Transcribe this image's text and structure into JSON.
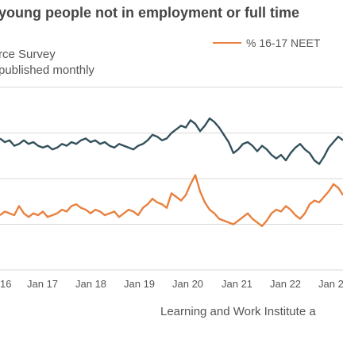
{
  "header": {
    "title": "young people not in employment or full time",
    "subtitle_line1": "rce Survey",
    "subtitle_line2": "published monthly"
  },
  "footer": {
    "source": "Learning and Work Institute a"
  },
  "colors": {
    "series_dark": "#33515c",
    "series_orange": "#e8813f",
    "gridline": "#d9d9d9"
  },
  "chart_data": {
    "type": "line",
    "title": "young people not in employment or full time",
    "xlabel": "",
    "ylabel": "",
    "x_ticks": [
      "16",
      "Jan 17",
      "Jan 18",
      "Jan 19",
      "Jan 20",
      "Jan 21",
      "Jan 22",
      "Jan 2"
    ],
    "x_range": [
      2016,
      2023.2
    ],
    "y_range": [
      0,
      100
    ],
    "grid": "horizontal",
    "legend_position": "top-right",
    "series": [
      {
        "name": "",
        "color": "#33515c",
        "x": [
          2016.0,
          2016.1,
          2016.2,
          2016.3,
          2016.4,
          2016.5,
          2016.6,
          2016.7,
          2016.8,
          2016.9,
          2017.0,
          2017.1,
          2017.2,
          2017.3,
          2017.4,
          2017.5,
          2017.6,
          2017.7,
          2017.8,
          2017.9,
          2018.0,
          2018.1,
          2018.2,
          2018.3,
          2018.4,
          2018.5,
          2018.6,
          2018.7,
          2018.8,
          2018.9,
          2019.0,
          2019.1,
          2019.2,
          2019.3,
          2019.4,
          2019.5,
          2019.6,
          2019.7,
          2019.8,
          2019.9,
          2020.0,
          2020.1,
          2020.2,
          2020.3,
          2020.4,
          2020.5,
          2020.6,
          2020.7,
          2020.8,
          2020.9,
          2021.0,
          2021.1,
          2021.2,
          2021.3,
          2021.4,
          2021.5,
          2021.6,
          2021.7,
          2021.8,
          2021.9,
          2022.0,
          2022.1,
          2022.2,
          2022.3,
          2022.4,
          2022.5,
          2022.6,
          2022.7,
          2022.8,
          2022.9,
          2023.0,
          2023.1,
          2023.2
        ],
        "values": [
          72,
          70,
          71,
          68,
          69,
          71,
          69,
          70,
          68,
          67,
          68,
          66,
          67,
          69,
          68,
          70,
          69,
          71,
          72,
          70,
          71,
          69,
          70,
          68,
          67,
          69,
          68,
          67,
          66,
          68,
          69,
          71,
          74,
          73,
          71,
          72,
          75,
          77,
          79,
          78,
          82,
          80,
          76,
          79,
          83,
          81,
          78,
          74,
          70,
          64,
          66,
          69,
          70,
          68,
          65,
          68,
          66,
          63,
          61,
          63,
          60,
          64,
          67,
          69,
          66,
          64,
          60,
          58,
          62,
          67,
          70,
          73,
          71
        ]
      },
      {
        "name": "% 16-17 NEET",
        "color": "#e8813f",
        "x": [
          2016.0,
          2016.1,
          2016.2,
          2016.3,
          2016.4,
          2016.5,
          2016.6,
          2016.7,
          2016.8,
          2016.9,
          2017.0,
          2017.1,
          2017.2,
          2017.3,
          2017.4,
          2017.5,
          2017.6,
          2017.7,
          2017.8,
          2017.9,
          2018.0,
          2018.1,
          2018.2,
          2018.3,
          2018.4,
          2018.5,
          2018.6,
          2018.7,
          2018.8,
          2018.9,
          2019.0,
          2019.1,
          2019.2,
          2019.3,
          2019.4,
          2019.5,
          2019.6,
          2019.7,
          2019.8,
          2019.9,
          2020.0,
          2020.1,
          2020.2,
          2020.3,
          2020.4,
          2020.5,
          2020.6,
          2020.7,
          2020.8,
          2020.9,
          2021.0,
          2021.1,
          2021.2,
          2021.3,
          2021.4,
          2021.5,
          2021.6,
          2021.7,
          2021.8,
          2021.9,
          2022.0,
          2022.1,
          2022.2,
          2022.3,
          2022.4,
          2022.5,
          2022.6,
          2022.7,
          2022.8,
          2022.9,
          2023.0,
          2023.1,
          2023.2
        ],
        "values": [
          30,
          32,
          31,
          30,
          35,
          31,
          29,
          31,
          30,
          32,
          29,
          30,
          31,
          33,
          32,
          35,
          36,
          34,
          33,
          31,
          33,
          32,
          30,
          31,
          32,
          29,
          31,
          33,
          32,
          30,
          34,
          36,
          39,
          37,
          36,
          34,
          42,
          40,
          38,
          41,
          47,
          52,
          43,
          37,
          33,
          31,
          28,
          27,
          26,
          25,
          27,
          29,
          31,
          28,
          26,
          24,
          27,
          31,
          33,
          32,
          35,
          33,
          30,
          28,
          31,
          36,
          38,
          37,
          40,
          43,
          47,
          45,
          41
        ]
      }
    ]
  }
}
